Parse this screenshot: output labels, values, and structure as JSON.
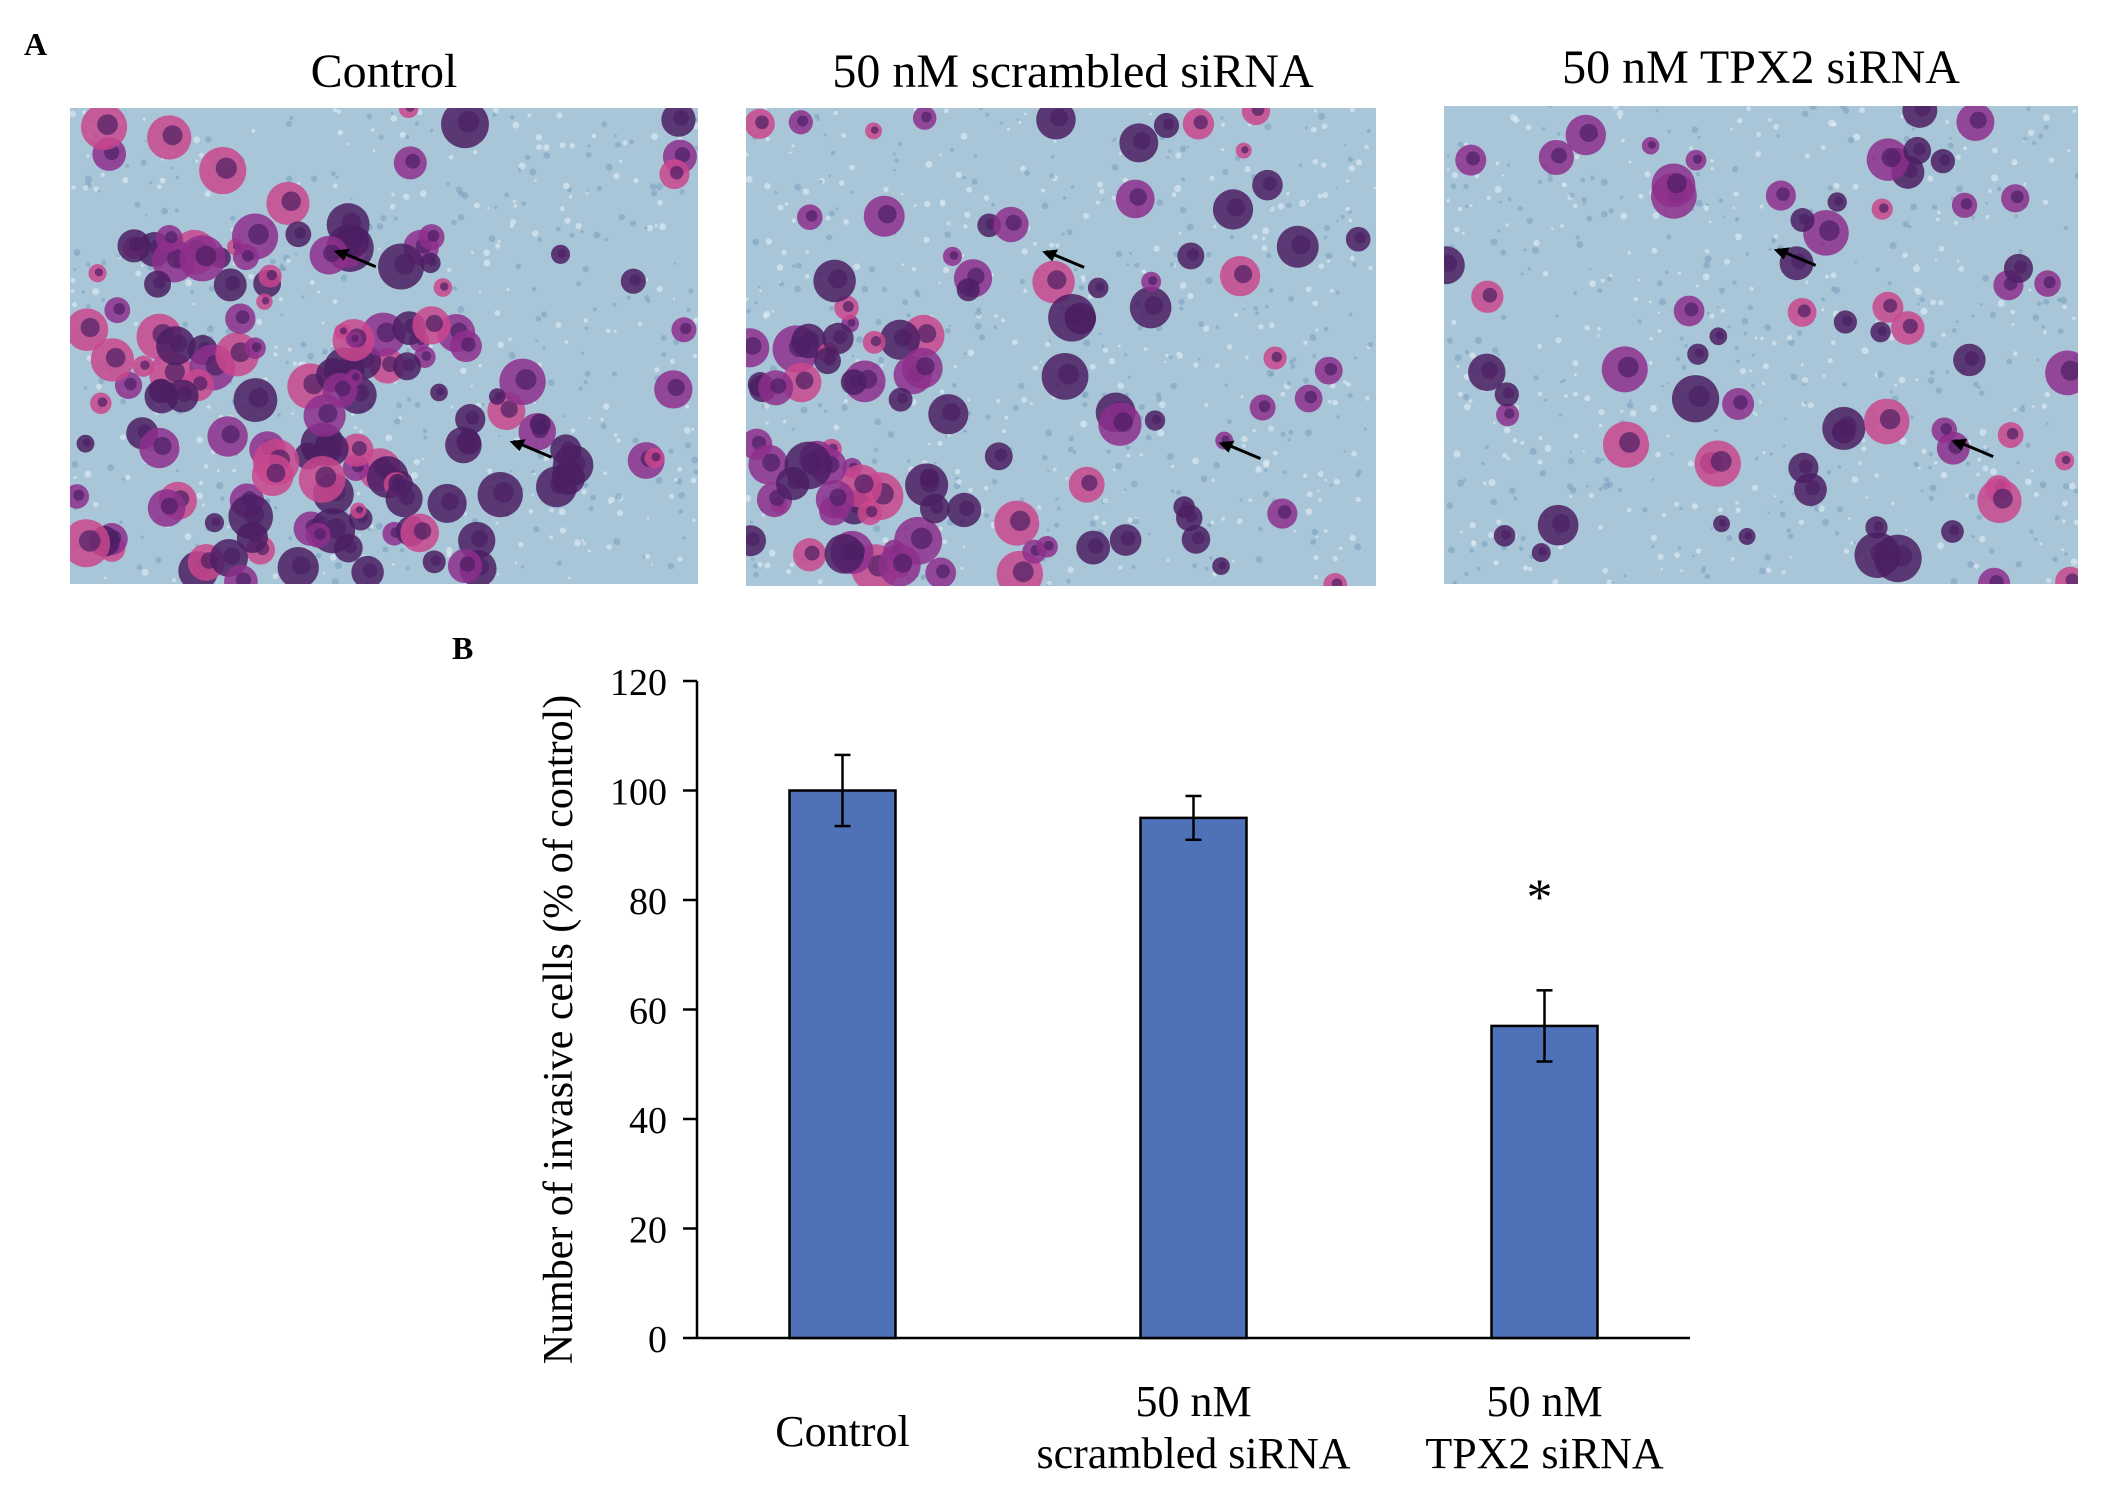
{
  "panel_a": {
    "letter": "A",
    "micrographs": [
      {
        "title": "Control",
        "density": 1.0,
        "arrows": 2
      },
      {
        "title": "50 nM  scrambled  siRNA",
        "density": 0.7,
        "arrows": 2
      },
      {
        "title": "50 nM TPX2  siRNA",
        "density": 0.45,
        "arrows": 2
      }
    ],
    "colors": {
      "background": "#a9c6d8",
      "texture": "#7fa2bf",
      "stain_dark": "#4b1f63",
      "stain_mid": "#8d2f8c",
      "stain_light": "#c9478d"
    }
  },
  "panel_b": {
    "letter": "B",
    "significance_marker": "*",
    "chart_data": {
      "type": "bar",
      "categories": [
        [
          "Control"
        ],
        [
          "50 nM",
          "scrambled  siRNA"
        ],
        [
          "50 nM",
          "TPX2  siRNA"
        ]
      ],
      "values": [
        100,
        95,
        57
      ],
      "errors": [
        6.5,
        4,
        6.5
      ],
      "ylabel": "Number of invasive cells  (% of control)",
      "ylim": [
        0,
        120
      ],
      "yticks": [
        0,
        20,
        40,
        60,
        80,
        100,
        120
      ],
      "bar_color": "#4f71b8",
      "grid": false,
      "legend": "none",
      "significant": [
        false,
        false,
        true
      ]
    }
  }
}
